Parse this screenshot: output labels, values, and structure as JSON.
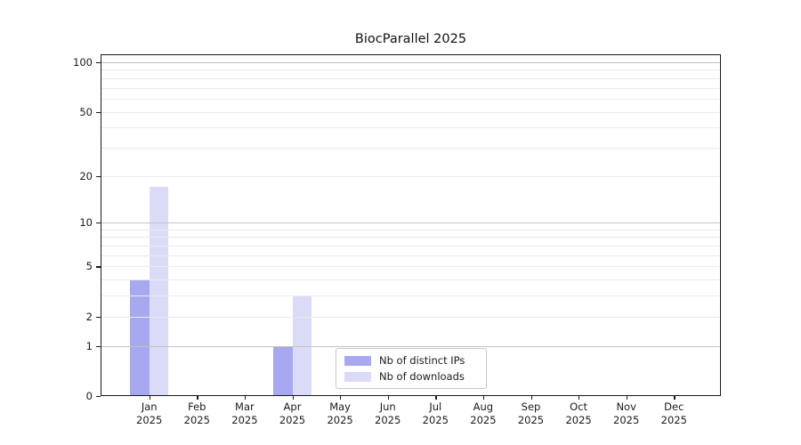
{
  "chart_data": {
    "type": "bar",
    "title": "BiocParallel 2025",
    "categories": [
      "Jan",
      "Feb",
      "Mar",
      "Apr",
      "May",
      "Jun",
      "Jul",
      "Aug",
      "Sep",
      "Oct",
      "Nov",
      "Dec"
    ],
    "category_year": "2025",
    "series": [
      {
        "name": "Nb of distinct IPs",
        "color": "#a8a8f0",
        "values": [
          4,
          0,
          0,
          1,
          0,
          0,
          0,
          0,
          0,
          0,
          0,
          0
        ]
      },
      {
        "name": "Nb of downloads",
        "color": "#dbdbf8",
        "values": [
          17,
          0,
          0,
          3,
          0,
          0,
          0,
          0,
          0,
          0,
          0,
          0
        ]
      }
    ],
    "xlabel": "",
    "ylabel": "",
    "y_scale": "log10(1+v)",
    "y_ticks": [
      0,
      1,
      2,
      5,
      10,
      20,
      50,
      100
    ],
    "y_minor_gridlines": [
      3,
      4,
      6,
      7,
      8,
      9,
      30,
      40,
      60,
      70,
      80,
      90
    ],
    "ylim": [
      0,
      111.8
    ],
    "grid": true,
    "legend_position": "lower center"
  },
  "colors": {
    "bar_distinct_ips": "#a8a8f0",
    "bar_downloads": "#dbdbf8",
    "grid_major": "#c2c2c2",
    "grid_minor": "#ebebeb",
    "axis": "#1a1a1a",
    "background": "#ffffff"
  }
}
